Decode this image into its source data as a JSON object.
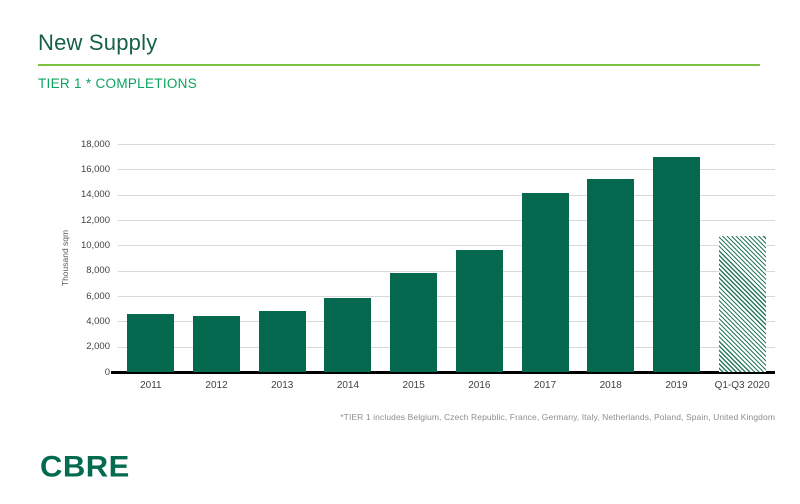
{
  "slide": {
    "title": "New Supply",
    "subtitle": "TIER 1 * COMPLETIONS",
    "footnote": "*TIER 1 includes Belgium, Czech Republic, France, Germany, Italy, Netherlands, Poland, Spain, United Kingdom",
    "logo_text": "CBRE"
  },
  "colors": {
    "title_green": "#17604A",
    "subtitle_green": "#0BA45E",
    "rule_green": "#7FC241",
    "bar_green": "#04694F",
    "grid_gray": "#D9D9D9",
    "tick_gray": "#404040",
    "footnote_gray": "#8A8F8C"
  },
  "chart_data": {
    "type": "bar",
    "categories": [
      "2011",
      "2012",
      "2013",
      "2014",
      "2015",
      "2016",
      "2017",
      "2018",
      "2019",
      "Q1-Q3 2020"
    ],
    "values": [
      4550,
      4450,
      4850,
      5850,
      7850,
      9650,
      14100,
      15200,
      16950,
      10700
    ],
    "title": "",
    "xlabel": "",
    "ylabel": "Thousand sqm",
    "ylim": [
      0,
      18000
    ],
    "ytick_step": 2000,
    "ytick_labels": [
      "0",
      "2,000",
      "4,000",
      "6,000",
      "8,000",
      "10,000",
      "12,000",
      "14,000",
      "16,000",
      "18,000"
    ],
    "grid": true,
    "legend": false,
    "last_bar_hatched": true,
    "bar_color": "#04694F"
  }
}
